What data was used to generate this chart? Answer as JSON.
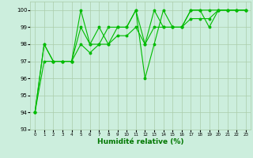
{
  "bg_color": "#cceedd",
  "grid_color": "#aaccaa",
  "line_color": "#00bb00",
  "xlabel": "Humidité relative (%)",
  "xlabel_color": "#007700",
  "tick_color": "#000000",
  "ylim": [
    93,
    100.5
  ],
  "xlim": [
    -0.5,
    23.5
  ],
  "yticks": [
    93,
    94,
    95,
    96,
    97,
    98,
    99,
    100
  ],
  "xticks": [
    0,
    1,
    2,
    3,
    4,
    5,
    6,
    7,
    8,
    9,
    10,
    11,
    12,
    13,
    14,
    15,
    16,
    17,
    18,
    19,
    20,
    21,
    22,
    23
  ],
  "series1_x": [
    0,
    1,
    2,
    3,
    4,
    5,
    6,
    7,
    8,
    9,
    10,
    11,
    12,
    13,
    14,
    15,
    16,
    17,
    18,
    19,
    20,
    21,
    22,
    23
  ],
  "series1_y": [
    94,
    98,
    97,
    97,
    97,
    100,
    98,
    98,
    99,
    99,
    99,
    100,
    98,
    100,
    99,
    99,
    99,
    100,
    100,
    100,
    100,
    100,
    100,
    100
  ],
  "series2_x": [
    0,
    1,
    2,
    3,
    4,
    5,
    6,
    7,
    8,
    9,
    10,
    11,
    12,
    13,
    14,
    15,
    16,
    17,
    18,
    19,
    20,
    21,
    22,
    23
  ],
  "series2_y": [
    94,
    98,
    97,
    97,
    97,
    99,
    98,
    99,
    98,
    99,
    99,
    100,
    96,
    98,
    100,
    99,
    99,
    100,
    100,
    99,
    100,
    100,
    100,
    100
  ],
  "series3_x": [
    0,
    1,
    2,
    3,
    4,
    5,
    6,
    7,
    8,
    9,
    10,
    11,
    12,
    13,
    14,
    15,
    16,
    17,
    18,
    19,
    20,
    21,
    22,
    23
  ],
  "series3_y": [
    94,
    97,
    97,
    97,
    97,
    98,
    97.5,
    98,
    98,
    98.5,
    98.5,
    99,
    98,
    99,
    99,
    99,
    99,
    99.5,
    99.5,
    99.5,
    100,
    100,
    100,
    100
  ]
}
